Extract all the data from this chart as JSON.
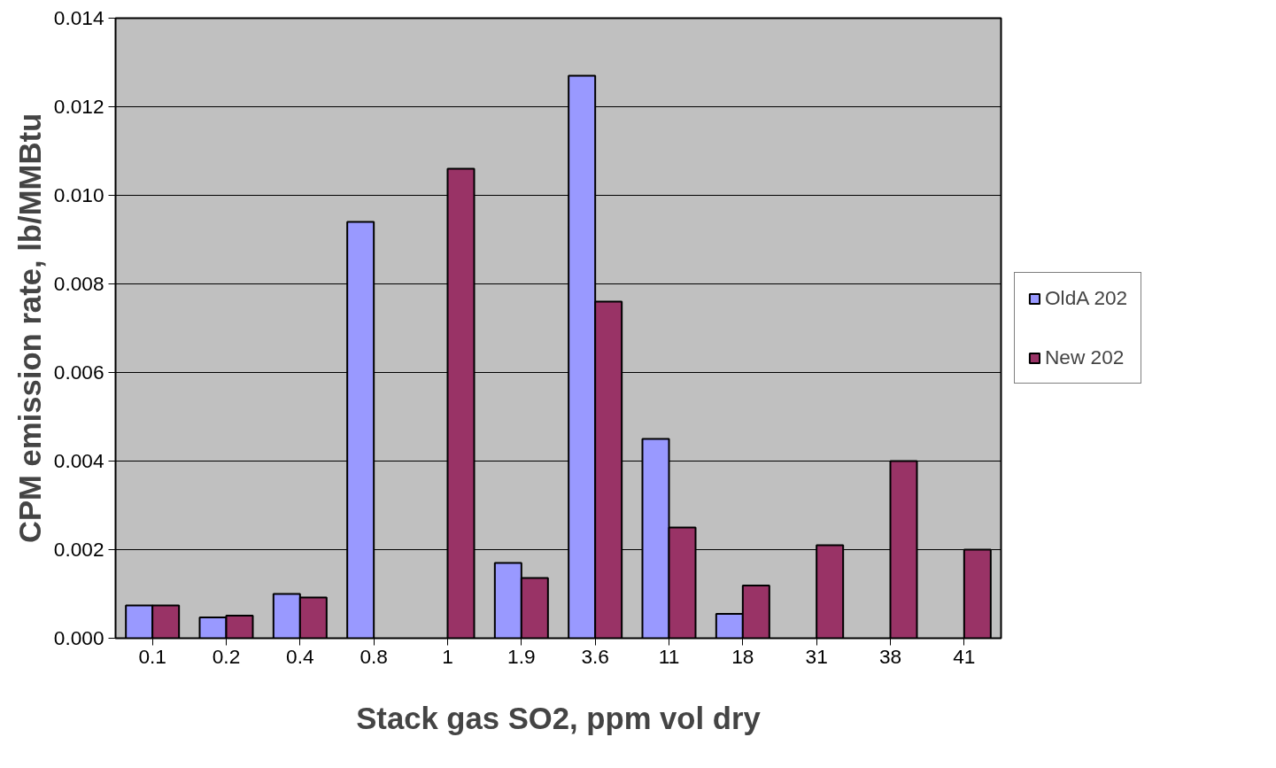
{
  "chart_data": {
    "type": "bar",
    "xlabel": "Stack gas SO2, ppm vol dry",
    "ylabel": "CPM emission rate, lb/MMBtu",
    "categories": [
      "0.1",
      "0.2",
      "0.4",
      "0.8",
      "1",
      "1.9",
      "3.6",
      "11",
      "18",
      "31",
      "38",
      "41"
    ],
    "series": [
      {
        "name": "OldA 202",
        "color": "#9999ff",
        "values": [
          0.00074,
          0.00047,
          0.001,
          0.0094,
          null,
          0.0017,
          0.0127,
          0.0045,
          0.00055,
          null,
          null,
          null
        ]
      },
      {
        "name": "New 202",
        "color": "#993366",
        "values": [
          0.00074,
          0.00051,
          0.00092,
          null,
          0.0106,
          0.00136,
          0.0076,
          0.0025,
          0.00119,
          0.0021,
          0.004,
          0.002
        ]
      }
    ],
    "ylim": [
      0,
      0.014
    ],
    "yticks": [
      {
        "value": 0,
        "label": "0.000"
      },
      {
        "value": 0.002,
        "label": "0.002"
      },
      {
        "value": 0.004,
        "label": "0.004"
      },
      {
        "value": 0.006,
        "label": "0.006"
      },
      {
        "value": 0.008,
        "label": "0.008"
      },
      {
        "value": 0.01,
        "label": "0.010"
      },
      {
        "value": 0.012,
        "label": "0.012"
      },
      {
        "value": 0.014,
        "label": "0.014"
      }
    ],
    "grid": "y",
    "legend": "right"
  }
}
